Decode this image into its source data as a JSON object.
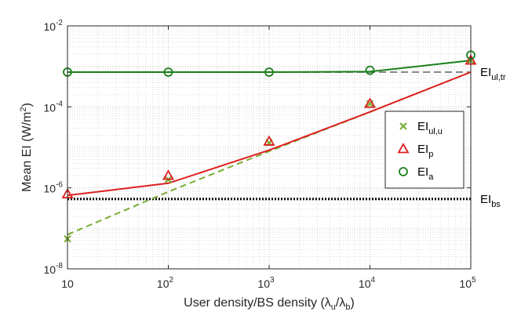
{
  "chart_data": {
    "type": "line",
    "xscale": "log",
    "yscale": "log",
    "xlim": [
      10,
      100000
    ],
    "ylim": [
      1e-08,
      0.01
    ],
    "grid": true,
    "legend_position": "right",
    "xlabel": {
      "text": "User density/BS density (λ",
      "sub1": "u",
      "mid": "/λ",
      "sub2": "b",
      "end": ")"
    },
    "ylabel": {
      "text": "Mean EI (W/m",
      "sup": "2",
      "end": ")"
    },
    "x_ticks": [
      {
        "value": 10,
        "base": "10",
        "exp": ""
      },
      {
        "value": 100,
        "base": "10",
        "exp": "2"
      },
      {
        "value": 1000,
        "base": "10",
        "exp": "3"
      },
      {
        "value": 10000,
        "base": "10",
        "exp": "4"
      },
      {
        "value": 100000,
        "base": "10",
        "exp": "5"
      }
    ],
    "y_ticks": [
      {
        "value": 1e-08,
        "base": "10",
        "exp": "-8"
      },
      {
        "value": 1e-06,
        "base": "10",
        "exp": "-6"
      },
      {
        "value": 0.0001,
        "base": "10",
        "exp": "-4"
      },
      {
        "value": 0.01,
        "base": "10",
        "exp": "-2"
      }
    ],
    "lines": [
      {
        "id": "ul-u",
        "color": "#77ac30",
        "dash": "8,5",
        "width": 2,
        "x": [
          10,
          100,
          1000,
          10000,
          100000
        ],
        "y": [
          7e-08,
          8e-07,
          8e-06,
          7.5e-05,
          0.00072
        ]
      },
      {
        "id": "p",
        "color": "#dd1f1f",
        "dash": "",
        "width": 2,
        "x": [
          10,
          100,
          1000,
          10000,
          100000
        ],
        "y": [
          6.5e-07,
          1.3e-06,
          8.5e-06,
          7.5e-05,
          0.00072
        ]
      },
      {
        "id": "a",
        "color": "#1b7f1b",
        "dash": "",
        "width": 2,
        "x": [
          10,
          100,
          1000,
          10000,
          100000
        ],
        "y": [
          0.00072,
          0.00072,
          0.00072,
          0.00074,
          0.0014
        ]
      }
    ],
    "hlines": [
      {
        "id": "ul-tr",
        "y": 0.00072,
        "x_from": 1000,
        "x_to": 100000,
        "color": "#888888",
        "dash": "9,5",
        "width": 2,
        "label": "EI",
        "label_sub": "ul,tr"
      },
      {
        "id": "bs",
        "y": 5.3e-07,
        "x_from": 10,
        "x_to": 100000,
        "color": "#000000",
        "dash": "2,2",
        "width": 3,
        "label": "EI",
        "label_sub": "bs"
      }
    ],
    "markers": [
      {
        "id": "ul-u",
        "shape": "x",
        "color": "#77ac30",
        "x": [
          10,
          100,
          1000,
          10000,
          100000
        ],
        "y": [
          5.5e-08,
          1.6e-06,
          1.3e-05,
          0.00012,
          0.0014
        ]
      },
      {
        "id": "p",
        "shape": "triangle",
        "color": "#dd1f1f",
        "x": [
          10,
          100,
          1000,
          10000,
          100000
        ],
        "y": [
          7e-07,
          2e-06,
          1.4e-05,
          0.00012,
          0.0014
        ]
      },
      {
        "id": "a",
        "shape": "circle",
        "color": "#1b7f1b",
        "x": [
          10,
          100,
          1000,
          10000,
          100000
        ],
        "y": [
          0.00072,
          0.00072,
          0.00072,
          0.0008,
          0.0019
        ]
      }
    ],
    "legend": [
      {
        "series": "ul-u",
        "shape": "x",
        "color": "#77ac30",
        "label": "EI",
        "sub": "ul,u"
      },
      {
        "series": "p",
        "shape": "triangle",
        "color": "#dd1f1f",
        "label": "EI",
        "sub": "p"
      },
      {
        "series": "a",
        "shape": "circle",
        "color": "#1b7f1b",
        "label": "EI",
        "sub": "a"
      }
    ]
  }
}
